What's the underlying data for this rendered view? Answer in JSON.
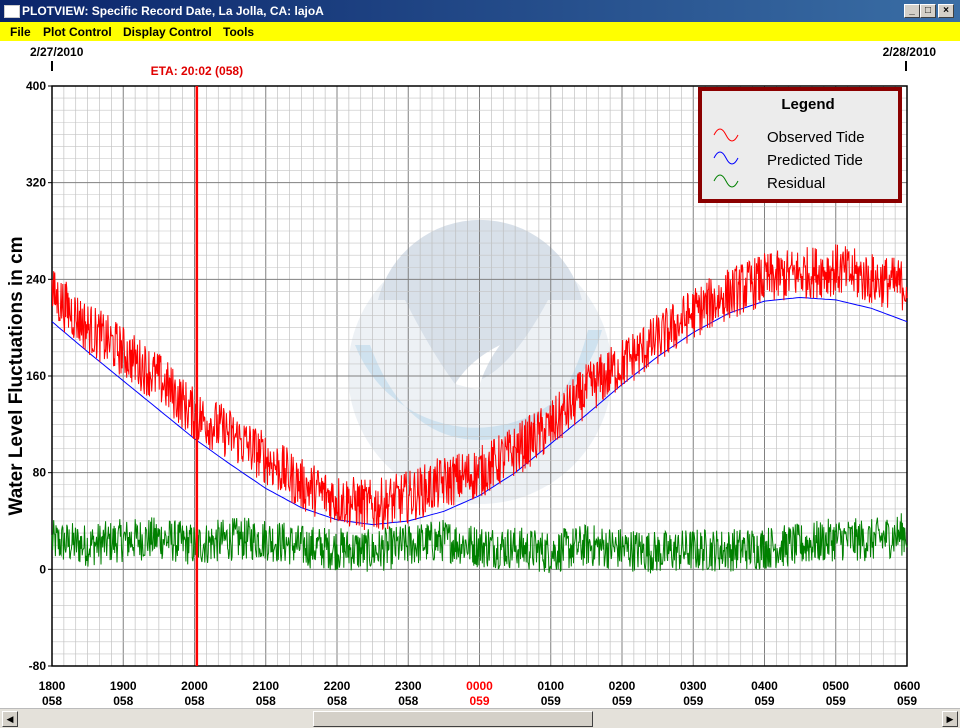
{
  "window": {
    "title": "PLOTVIEW: Specific Record Date, La Jolla, CA: lajoA",
    "min_glyph": "_",
    "max_glyph": "□",
    "close_glyph": "×"
  },
  "menu": {
    "items": [
      "File",
      "Plot Control",
      "Display Control",
      "Tools"
    ]
  },
  "dates": {
    "start": "2/27/2010",
    "end": "2/28/2010"
  },
  "eta": {
    "label": "ETA: 20:02 (058)",
    "hour": 20.033
  },
  "legend": {
    "title": "Legend",
    "items": [
      {
        "label": "Observed Tide",
        "color": "#ff0000"
      },
      {
        "label": "Predicted Tide",
        "color": "#0000ff"
      },
      {
        "label": "Residual",
        "color": "#008000"
      }
    ]
  },
  "scrollbar": {
    "left_glyph": "◀",
    "right_glyph": "▶"
  },
  "chart_data": {
    "type": "line",
    "ylabel": "Water Level Fluctuations in cm",
    "ylim": [
      -80,
      400
    ],
    "yticks": [
      -80,
      0,
      80,
      160,
      240,
      320,
      400
    ],
    "xlim": [
      18,
      30
    ],
    "xticks": [
      {
        "time": "1800",
        "day": "058",
        "highlight": false
      },
      {
        "time": "1900",
        "day": "058",
        "highlight": false
      },
      {
        "time": "2000",
        "day": "058",
        "highlight": false
      },
      {
        "time": "2100",
        "day": "058",
        "highlight": false
      },
      {
        "time": "2200",
        "day": "058",
        "highlight": false
      },
      {
        "time": "2300",
        "day": "058",
        "highlight": false
      },
      {
        "time": "0000",
        "day": "059",
        "highlight": true
      },
      {
        "time": "0100",
        "day": "059",
        "highlight": false
      },
      {
        "time": "0200",
        "day": "059",
        "highlight": false
      },
      {
        "time": "0300",
        "day": "059",
        "highlight": false
      },
      {
        "time": "0400",
        "day": "059",
        "highlight": false
      },
      {
        "time": "0500",
        "day": "059",
        "highlight": false
      },
      {
        "time": "0600",
        "day": "059",
        "highlight": false
      }
    ],
    "grid": true,
    "legend_position": "top-right",
    "series": [
      {
        "name": "Observed Tide",
        "color": "#ff0000",
        "x": [
          18,
          18.5,
          19,
          19.5,
          20,
          20.5,
          21,
          21.5,
          22,
          22.5,
          23,
          23.5,
          24,
          24.5,
          25,
          25.5,
          26,
          26.5,
          27,
          27.5,
          28,
          28.5,
          29,
          29.5,
          30
        ],
        "y": [
          228,
          200,
          180,
          158,
          128,
          112,
          92,
          70,
          58,
          52,
          60,
          72,
          80,
          98,
          118,
          148,
          170,
          190,
          212,
          228,
          240,
          245,
          248,
          240,
          235
        ]
      },
      {
        "name": "Predicted Tide",
        "color": "#0000ff",
        "x": [
          18,
          18.5,
          19,
          19.5,
          20,
          20.5,
          21,
          21.5,
          22,
          22.5,
          23,
          23.5,
          24,
          24.5,
          25,
          25.5,
          26,
          26.5,
          27,
          27.5,
          28,
          28.5,
          29,
          29.5,
          30
        ],
        "y": [
          205,
          180,
          156,
          132,
          108,
          87,
          67,
          51,
          41,
          37,
          40,
          48,
          61,
          80,
          104,
          128,
          153,
          176,
          196,
          212,
          222,
          225,
          223,
          216,
          205
        ]
      },
      {
        "name": "Residual",
        "color": "#008000",
        "x": [
          18,
          18.5,
          19,
          19.5,
          20,
          20.5,
          21,
          21.5,
          22,
          22.5,
          23,
          23.5,
          24,
          24.5,
          25,
          25.5,
          26,
          26.5,
          27,
          27.5,
          28,
          28.5,
          29,
          29.5,
          30
        ],
        "y": [
          23,
          20,
          24,
          26,
          20,
          25,
          25,
          19,
          17,
          15,
          20,
          24,
          19,
          18,
          14,
          20,
          17,
          14,
          16,
          16,
          18,
          20,
          25,
          24,
          30
        ]
      }
    ]
  }
}
